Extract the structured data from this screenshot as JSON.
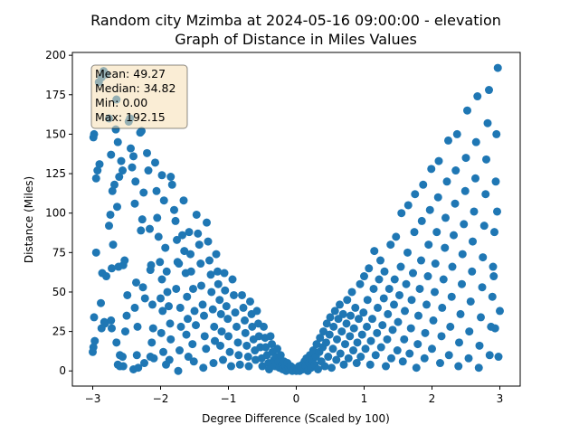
{
  "chart_data": {
    "type": "scatter",
    "title": "Random city Mzimba at 2024-05-16 09:00:00  - elevation",
    "subtitle": "Graph of Distance in Miles Values",
    "xlabel": "Degree Difference (Scaled by 100)",
    "ylabel": "Distance (Miles)",
    "xlim": [
      -3.3,
      3.3
    ],
    "ylim": [
      -9.6,
      201.8
    ],
    "xticks": [
      -3,
      -2,
      -1,
      0,
      1,
      2,
      3
    ],
    "yticks": [
      0,
      25,
      50,
      75,
      100,
      125,
      150,
      175,
      200
    ],
    "grid": false,
    "marker_color": "#1f77b4",
    "stats_box": {
      "mean": "Mean: 49.27",
      "median": "Median: 34.82",
      "min": "Min: 0.00",
      "max": "Max: 192.15",
      "facecolor": "#f5deb3",
      "placement": "top-left"
    },
    "points": [
      [
        -2.98,
        150
      ],
      [
        -2.99,
        148
      ],
      [
        -2.95,
        122
      ],
      [
        -2.93,
        127
      ],
      [
        -2.9,
        131
      ],
      [
        -2.95,
        75
      ],
      [
        -2.98,
        34
      ],
      [
        -2.97,
        19
      ],
      [
        -2.99,
        15
      ],
      [
        -3.0,
        12
      ],
      [
        -2.91,
        183
      ],
      [
        -2.87,
        186
      ],
      [
        -2.84,
        190
      ],
      [
        -2.8,
        188
      ],
      [
        -2.86,
        62
      ],
      [
        -2.88,
        43
      ],
      [
        -2.83,
        31
      ],
      [
        -2.87,
        27
      ],
      [
        -2.82,
        30
      ],
      [
        -2.8,
        60
      ],
      [
        -2.76,
        160
      ],
      [
        -2.73,
        137
      ],
      [
        -2.71,
        114
      ],
      [
        -2.74,
        99
      ],
      [
        -2.76,
        92
      ],
      [
        -2.7,
        80
      ],
      [
        -2.72,
        65
      ],
      [
        -2.73,
        32
      ],
      [
        -2.72,
        27
      ],
      [
        -2.68,
        118
      ],
      [
        -2.66,
        153
      ],
      [
        -2.65,
        172
      ],
      [
        -2.63,
        145
      ],
      [
        -2.61,
        123
      ],
      [
        -2.64,
        104
      ],
      [
        -2.62,
        66
      ],
      [
        -2.65,
        18
      ],
      [
        -2.6,
        10
      ],
      [
        -2.63,
        4
      ],
      [
        -2.6,
        3
      ],
      [
        -2.58,
        133
      ],
      [
        -2.56,
        127
      ],
      [
        -2.55,
        67
      ],
      [
        -2.53,
        70
      ],
      [
        -2.52,
        25
      ],
      [
        -2.5,
        35
      ],
      [
        -2.55,
        3
      ],
      [
        -2.56,
        9
      ],
      [
        -2.49,
        48
      ],
      [
        -2.47,
        158
      ],
      [
        -2.45,
        160
      ],
      [
        -2.44,
        141
      ],
      [
        -2.42,
        129
      ],
      [
        -2.4,
        136
      ],
      [
        -2.38,
        106
      ],
      [
        -2.37,
        120
      ],
      [
        -2.36,
        56
      ],
      [
        -2.34,
        28
      ],
      [
        -2.38,
        40
      ],
      [
        -2.4,
        1
      ],
      [
        -2.33,
        2
      ],
      [
        -2.35,
        10
      ],
      [
        -2.3,
        151
      ],
      [
        -2.28,
        152
      ],
      [
        -2.25,
        113
      ],
      [
        -2.27,
        96
      ],
      [
        -2.29,
        89
      ],
      [
        -2.26,
        53
      ],
      [
        -2.23,
        46
      ],
      [
        -2.24,
        5
      ],
      [
        -2.2,
        138
      ],
      [
        -2.18,
        127
      ],
      [
        -2.16,
        90
      ],
      [
        -2.15,
        64
      ],
      [
        -2.14,
        67
      ],
      [
        -2.12,
        42
      ],
      [
        -2.11,
        27
      ],
      [
        -2.13,
        18
      ],
      [
        -2.15,
        9
      ],
      [
        -2.1,
        8
      ],
      [
        -2.08,
        132
      ],
      [
        -2.06,
        114
      ],
      [
        -2.05,
        97
      ],
      [
        -2.03,
        85
      ],
      [
        -2.01,
        69
      ],
      [
        -1.98,
        58
      ],
      [
        -2.0,
        46
      ],
      [
        -1.97,
        38
      ],
      [
        -1.99,
        24
      ],
      [
        -1.96,
        12
      ],
      [
        -1.98,
        124
      ],
      [
        -1.95,
        108
      ],
      [
        -1.93,
        78
      ],
      [
        -1.91,
        63
      ],
      [
        -1.9,
        50
      ],
      [
        -1.88,
        41
      ],
      [
        -1.86,
        30
      ],
      [
        -1.85,
        20
      ],
      [
        -1.87,
        7
      ],
      [
        -1.92,
        4
      ],
      [
        -1.85,
        123
      ],
      [
        -1.83,
        118
      ],
      [
        -1.8,
        102
      ],
      [
        -1.78,
        95
      ],
      [
        -1.76,
        83
      ],
      [
        -1.75,
        69
      ],
      [
        -1.73,
        68
      ],
      [
        -1.77,
        52
      ],
      [
        -1.71,
        40
      ],
      [
        -1.7,
        28
      ],
      [
        -1.72,
        13
      ],
      [
        -1.74,
        0
      ],
      [
        -1.68,
        86
      ],
      [
        -1.66,
        108
      ],
      [
        -1.65,
        76
      ],
      [
        -1.63,
        62
      ],
      [
        -1.61,
        47
      ],
      [
        -1.6,
        33
      ],
      [
        -1.62,
        23
      ],
      [
        -1.59,
        9
      ],
      [
        -1.58,
        88
      ],
      [
        -1.56,
        74
      ],
      [
        -1.55,
        63
      ],
      [
        -1.52,
        52
      ],
      [
        -1.5,
        38
      ],
      [
        -1.48,
        29
      ],
      [
        -1.53,
        17
      ],
      [
        -1.51,
        6
      ],
      [
        -1.47,
        99
      ],
      [
        -1.45,
        87
      ],
      [
        -1.43,
        80
      ],
      [
        -1.41,
        68
      ],
      [
        -1.4,
        54
      ],
      [
        -1.38,
        42
      ],
      [
        -1.36,
        35
      ],
      [
        -1.35,
        22
      ],
      [
        -1.33,
        14
      ],
      [
        -1.37,
        2
      ],
      [
        -1.32,
        94
      ],
      [
        -1.3,
        82
      ],
      [
        -1.28,
        70
      ],
      [
        -1.26,
        61
      ],
      [
        -1.25,
        50
      ],
      [
        -1.23,
        39
      ],
      [
        -1.21,
        28
      ],
      [
        -1.2,
        19
      ],
      [
        -1.22,
        5
      ],
      [
        -1.18,
        74
      ],
      [
        -1.16,
        63
      ],
      [
        -1.15,
        55
      ],
      [
        -1.13,
        45
      ],
      [
        -1.11,
        36
      ],
      [
        -1.1,
        25
      ],
      [
        -1.12,
        16
      ],
      [
        -1.08,
        7
      ],
      [
        -1.06,
        62
      ],
      [
        -1.05,
        51
      ],
      [
        -1.03,
        41
      ],
      [
        -1.01,
        33
      ],
      [
        -1.0,
        22
      ],
      [
        -0.98,
        12
      ],
      [
        -0.96,
        3
      ],
      [
        -0.94,
        58
      ],
      [
        -0.92,
        48
      ],
      [
        -0.9,
        37
      ],
      [
        -0.88,
        28
      ],
      [
        -0.86,
        18
      ],
      [
        -0.85,
        10
      ],
      [
        -0.83,
        4
      ],
      [
        -0.8,
        48
      ],
      [
        -0.78,
        40
      ],
      [
        -0.76,
        32
      ],
      [
        -0.75,
        24
      ],
      [
        -0.73,
        16
      ],
      [
        -0.71,
        9
      ],
      [
        -0.7,
        3
      ],
      [
        -0.68,
        44
      ],
      [
        -0.66,
        36
      ],
      [
        -0.65,
        28
      ],
      [
        -0.63,
        20
      ],
      [
        -0.61,
        13
      ],
      [
        -0.6,
        7
      ],
      [
        -0.58,
        38
      ],
      [
        -0.56,
        30
      ],
      [
        -0.55,
        22
      ],
      [
        -0.53,
        15
      ],
      [
        -0.51,
        8
      ],
      [
        -0.5,
        3
      ],
      [
        -0.48,
        28
      ],
      [
        -0.46,
        21
      ],
      [
        -0.45,
        15
      ],
      [
        -0.43,
        10
      ],
      [
        -0.41,
        5
      ],
      [
        -0.4,
        1
      ],
      [
        -0.38,
        22
      ],
      [
        -0.36,
        17
      ],
      [
        -0.35,
        12
      ],
      [
        -0.33,
        7
      ],
      [
        -0.31,
        3
      ],
      [
        -0.3,
        9
      ],
      [
        -0.28,
        14
      ],
      [
        -0.26,
        6
      ],
      [
        -0.25,
        2
      ],
      [
        -0.23,
        10
      ],
      [
        -0.21,
        4
      ],
      [
        -0.2,
        1
      ],
      [
        -0.18,
        6
      ],
      [
        -0.16,
        3
      ],
      [
        -0.15,
        0
      ],
      [
        -0.13,
        5
      ],
      [
        -0.11,
        2
      ],
      [
        -0.1,
        1
      ],
      [
        -0.08,
        3
      ],
      [
        -0.06,
        0
      ],
      [
        -0.05,
        2
      ],
      [
        -0.03,
        1
      ],
      [
        0.0,
        0
      ],
      [
        0.02,
        1
      ],
      [
        0.04,
        3
      ],
      [
        0.05,
        0
      ],
      [
        0.07,
        2
      ],
      [
        0.09,
        4
      ],
      [
        0.1,
        1
      ],
      [
        0.12,
        6
      ],
      [
        0.14,
        3
      ],
      [
        0.15,
        8
      ],
      [
        0.17,
        0
      ],
      [
        0.19,
        5
      ],
      [
        0.2,
        10
      ],
      [
        0.22,
        2
      ],
      [
        0.24,
        7
      ],
      [
        0.25,
        13
      ],
      [
        0.27,
        4
      ],
      [
        0.29,
        9
      ],
      [
        0.3,
        17
      ],
      [
        0.32,
        1
      ],
      [
        0.34,
        12
      ],
      [
        0.35,
        21
      ],
      [
        0.37,
        6
      ],
      [
        0.39,
        15
      ],
      [
        0.4,
        25
      ],
      [
        0.42,
        3
      ],
      [
        0.44,
        18
      ],
      [
        0.45,
        30
      ],
      [
        0.47,
        9
      ],
      [
        0.49,
        23
      ],
      [
        0.5,
        34
      ],
      [
        0.52,
        2
      ],
      [
        0.54,
        14
      ],
      [
        0.55,
        28
      ],
      [
        0.57,
        38
      ],
      [
        0.59,
        7
      ],
      [
        0.6,
        20
      ],
      [
        0.62,
        33
      ],
      [
        0.64,
        42
      ],
      [
        0.65,
        11
      ],
      [
        0.67,
        25
      ],
      [
        0.69,
        36
      ],
      [
        0.7,
        4
      ],
      [
        0.72,
        17
      ],
      [
        0.74,
        30
      ],
      [
        0.75,
        45
      ],
      [
        0.77,
        8
      ],
      [
        0.79,
        22
      ],
      [
        0.8,
        35
      ],
      [
        0.82,
        50
      ],
      [
        0.84,
        13
      ],
      [
        0.85,
        27
      ],
      [
        0.87,
        40
      ],
      [
        0.89,
        5
      ],
      [
        0.9,
        18
      ],
      [
        0.92,
        33
      ],
      [
        0.94,
        55
      ],
      [
        0.95,
        9
      ],
      [
        0.97,
        23
      ],
      [
        0.99,
        37
      ],
      [
        1.0,
        60
      ],
      [
        1.02,
        14
      ],
      [
        1.04,
        28
      ],
      [
        1.05,
        45
      ],
      [
        1.07,
        65
      ],
      [
        1.09,
        4
      ],
      [
        1.1,
        19
      ],
      [
        1.12,
        33
      ],
      [
        1.14,
        52
      ],
      [
        1.15,
        76
      ],
      [
        1.17,
        10
      ],
      [
        1.19,
        24
      ],
      [
        1.2,
        40
      ],
      [
        1.22,
        58
      ],
      [
        1.24,
        70
      ],
      [
        1.25,
        15
      ],
      [
        1.27,
        29
      ],
      [
        1.29,
        46
      ],
      [
        1.3,
        63
      ],
      [
        1.32,
        3
      ],
      [
        1.34,
        20
      ],
      [
        1.35,
        36
      ],
      [
        1.37,
        52
      ],
      [
        1.39,
        80
      ],
      [
        1.4,
        8
      ],
      [
        1.42,
        26
      ],
      [
        1.44,
        42
      ],
      [
        1.45,
        58
      ],
      [
        1.47,
        85
      ],
      [
        1.49,
        13
      ],
      [
        1.5,
        31
      ],
      [
        1.52,
        48
      ],
      [
        1.54,
        66
      ],
      [
        1.55,
        100
      ],
      [
        1.57,
        6
      ],
      [
        1.59,
        20
      ],
      [
        1.6,
        38
      ],
      [
        1.62,
        55
      ],
      [
        1.64,
        75
      ],
      [
        1.65,
        105
      ],
      [
        1.67,
        11
      ],
      [
        1.69,
        27
      ],
      [
        1.7,
        45
      ],
      [
        1.72,
        62
      ],
      [
        1.74,
        88
      ],
      [
        1.75,
        112
      ],
      [
        1.77,
        2
      ],
      [
        1.79,
        17
      ],
      [
        1.8,
        35
      ],
      [
        1.82,
        52
      ],
      [
        1.84,
        70
      ],
      [
        1.85,
        95
      ],
      [
        1.87,
        118
      ],
      [
        1.89,
        8
      ],
      [
        1.9,
        24
      ],
      [
        1.92,
        42
      ],
      [
        1.94,
        60
      ],
      [
        1.95,
        80
      ],
      [
        1.97,
        102
      ],
      [
        1.99,
        128
      ],
      [
        2.0,
        14
      ],
      [
        2.02,
        32
      ],
      [
        2.04,
        50
      ],
      [
        2.05,
        68
      ],
      [
        2.07,
        88
      ],
      [
        2.09,
        110
      ],
      [
        2.1,
        133
      ],
      [
        2.12,
        5
      ],
      [
        2.14,
        22
      ],
      [
        2.15,
        40
      ],
      [
        2.17,
        58
      ],
      [
        2.19,
        78
      ],
      [
        2.2,
        97
      ],
      [
        2.22,
        120
      ],
      [
        2.24,
        146
      ],
      [
        2.25,
        10
      ],
      [
        2.27,
        28
      ],
      [
        2.29,
        47
      ],
      [
        2.3,
        66
      ],
      [
        2.32,
        86
      ],
      [
        2.34,
        106
      ],
      [
        2.35,
        127
      ],
      [
        2.37,
        150
      ],
      [
        2.39,
        3
      ],
      [
        2.4,
        18
      ],
      [
        2.42,
        36
      ],
      [
        2.44,
        55
      ],
      [
        2.45,
        74
      ],
      [
        2.47,
        93
      ],
      [
        2.49,
        114
      ],
      [
        2.5,
        135
      ],
      [
        2.52,
        165
      ],
      [
        2.54,
        8
      ],
      [
        2.55,
        25
      ],
      [
        2.57,
        44
      ],
      [
        2.59,
        63
      ],
      [
        2.6,
        82
      ],
      [
        2.62,
        101
      ],
      [
        2.64,
        122
      ],
      [
        2.65,
        145
      ],
      [
        2.67,
        174
      ],
      [
        2.69,
        2
      ],
      [
        2.7,
        16
      ],
      [
        2.72,
        34
      ],
      [
        2.74,
        53
      ],
      [
        2.75,
        72
      ],
      [
        2.77,
        92
      ],
      [
        2.79,
        112
      ],
      [
        2.8,
        134
      ],
      [
        2.82,
        157
      ],
      [
        2.84,
        178
      ],
      [
        2.85,
        10
      ],
      [
        2.87,
        28
      ],
      [
        2.89,
        47
      ],
      [
        2.9,
        66
      ],
      [
        2.92,
        88
      ],
      [
        2.94,
        120
      ],
      [
        2.95,
        150
      ],
      [
        2.97,
        192
      ],
      [
        2.98,
        9
      ],
      [
        3.0,
        38
      ],
      [
        2.96,
        101
      ],
      [
        2.93,
        27
      ],
      [
        2.91,
        60
      ]
    ]
  }
}
